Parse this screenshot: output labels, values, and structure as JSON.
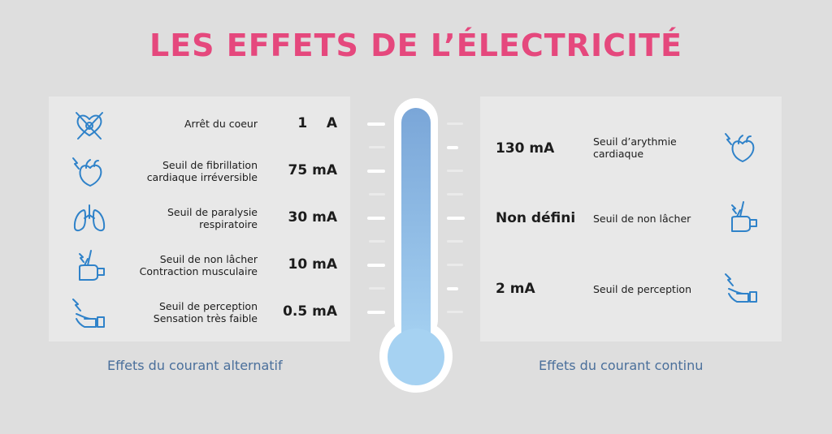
{
  "title": "LES EFFETS DE L’ÉLECTRICITÉ",
  "alternating": {
    "caption": "Effets du courant alternatif",
    "rows": [
      {
        "label_lines": [
          "Arrêt du coeur"
        ],
        "value": "1    A",
        "icon": "heart-stopped-icon"
      },
      {
        "label_lines": [
          "Seuil de fibrillation",
          "cardiaque irréversible"
        ],
        "value": "75 mA",
        "icon": "heart-shock-icon"
      },
      {
        "label_lines": [
          "Seuil de paralysie",
          "respiratoire"
        ],
        "value": "30 mA",
        "icon": "lungs-icon"
      },
      {
        "label_lines": [
          "Seuil de non lâcher",
          "Contraction musculaire"
        ],
        "value": "10 mA",
        "icon": "grip-hand-icon"
      },
      {
        "label_lines": [
          "Seuil de perception",
          "Sensation très faible"
        ],
        "value": "0.5 mA",
        "icon": "open-hand-shock-icon"
      }
    ]
  },
  "direct": {
    "caption": "Effets du courant continu",
    "rows": [
      {
        "label_lines": [
          "Seuil d’arythmie",
          "cardiaque"
        ],
        "value": "130 mA",
        "icon": "heart-shock-icon"
      },
      {
        "label_lines": [
          "Seuil de non lâcher"
        ],
        "value": "Non défini",
        "icon": "grip-hand-icon"
      },
      {
        "label_lines": [
          "Seuil de perception"
        ],
        "value": "2 mA",
        "icon": "open-hand-shock-icon"
      }
    ]
  },
  "colors": {
    "title": "#e5487d",
    "icon": "#2f82c9",
    "caption": "#4a6f9b",
    "thermometer_top": "#7aa6d8",
    "thermometer_bottom": "#a6d2f2"
  }
}
